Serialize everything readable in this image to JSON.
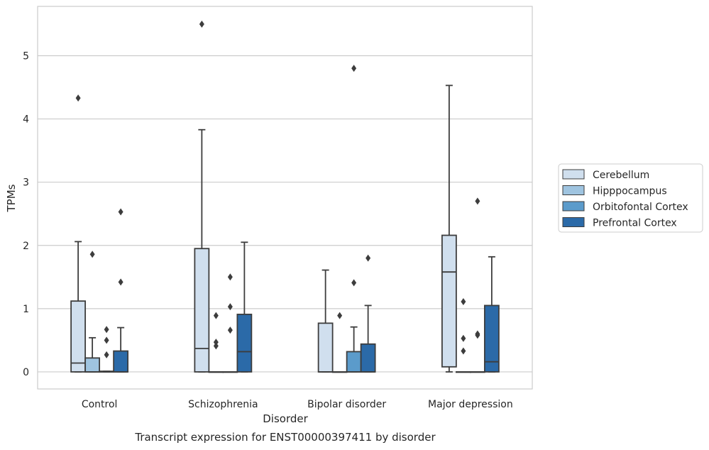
{
  "caption": "Transcript expression for ENST00000397411 by disorder",
  "chart_data": {
    "type": "box",
    "xlabel": "Disorder",
    "ylabel": "TPMs",
    "ylim": [
      -0.27,
      5.78
    ],
    "yticks": [
      0,
      1,
      2,
      3,
      4,
      5
    ],
    "grid": "horizontal",
    "legend_position": "right",
    "categories": [
      "Control",
      "Schizophrenia",
      "Bipolar disorder",
      "Major depression"
    ],
    "series": [
      {
        "name": "Cerebellum",
        "color": "#d0dfee",
        "boxes": [
          {
            "q1": 0.0,
            "median": 0.14,
            "q3": 1.12,
            "whisker_low": 0.0,
            "whisker_high": 2.06,
            "outliers": [
              4.33
            ]
          },
          {
            "q1": 0.0,
            "median": 0.37,
            "q3": 1.95,
            "whisker_low": 0.0,
            "whisker_high": 3.83,
            "outliers": [
              5.5
            ]
          },
          {
            "q1": 0.0,
            "median": 0.0,
            "q3": 0.77,
            "whisker_low": 0.0,
            "whisker_high": 1.61,
            "outliers": []
          },
          {
            "q1": 0.08,
            "median": 1.58,
            "q3": 2.16,
            "whisker_low": 0.0,
            "whisker_high": 4.53,
            "outliers": []
          }
        ]
      },
      {
        "name": "Hipppocampus",
        "color": "#9fc4e0",
        "boxes": [
          {
            "q1": 0.0,
            "median": 0.0,
            "q3": 0.22,
            "whisker_low": 0.0,
            "whisker_high": 0.54,
            "outliers": [
              1.86
            ]
          },
          {
            "q1": 0.0,
            "median": 0.0,
            "q3": 0.0,
            "whisker_low": 0.0,
            "whisker_high": 0.0,
            "outliers": [
              0.41,
              0.47,
              0.89
            ]
          },
          {
            "q1": 0.0,
            "median": 0.0,
            "q3": 0.0,
            "whisker_low": 0.0,
            "whisker_high": 0.0,
            "outliers": [
              0.89
            ]
          },
          {
            "q1": 0.0,
            "median": 0.0,
            "q3": 0.0,
            "whisker_low": 0.0,
            "whisker_high": 0.0,
            "outliers": [
              0.33,
              0.53,
              1.11
            ]
          }
        ]
      },
      {
        "name": "Orbitofontal Cortex",
        "color": "#5b9bcb",
        "boxes": [
          {
            "q1": 0.0,
            "median": 0.0,
            "q3": 0.01,
            "whisker_low": 0.0,
            "whisker_high": 0.01,
            "outliers": [
              0.27,
              0.5,
              0.67
            ]
          },
          {
            "q1": 0.0,
            "median": 0.0,
            "q3": 0.0,
            "whisker_low": 0.0,
            "whisker_high": 0.0,
            "outliers": [
              0.66,
              1.03,
              1.5
            ]
          },
          {
            "q1": 0.0,
            "median": 0.0,
            "q3": 0.32,
            "whisker_low": 0.0,
            "whisker_high": 0.71,
            "outliers": [
              1.41,
              4.8
            ]
          },
          {
            "q1": 0.0,
            "median": 0.0,
            "q3": 0.0,
            "whisker_low": 0.0,
            "whisker_high": 0.0,
            "outliers": [
              0.58,
              0.6,
              2.7
            ]
          }
        ]
      },
      {
        "name": "Prefrontal Cortex",
        "color": "#2b6aa8",
        "boxes": [
          {
            "q1": 0.0,
            "median": 0.0,
            "q3": 0.33,
            "whisker_low": 0.0,
            "whisker_high": 0.7,
            "outliers": [
              1.42,
              2.53
            ]
          },
          {
            "q1": 0.0,
            "median": 0.32,
            "q3": 0.91,
            "whisker_low": 0.0,
            "whisker_high": 2.05,
            "outliers": []
          },
          {
            "q1": 0.0,
            "median": 0.0,
            "q3": 0.44,
            "whisker_low": 0.0,
            "whisker_high": 1.05,
            "outliers": [
              1.8
            ]
          },
          {
            "q1": 0.0,
            "median": 0.16,
            "q3": 1.05,
            "whisker_low": 0.0,
            "whisker_high": 1.82,
            "outliers": []
          }
        ]
      }
    ]
  }
}
